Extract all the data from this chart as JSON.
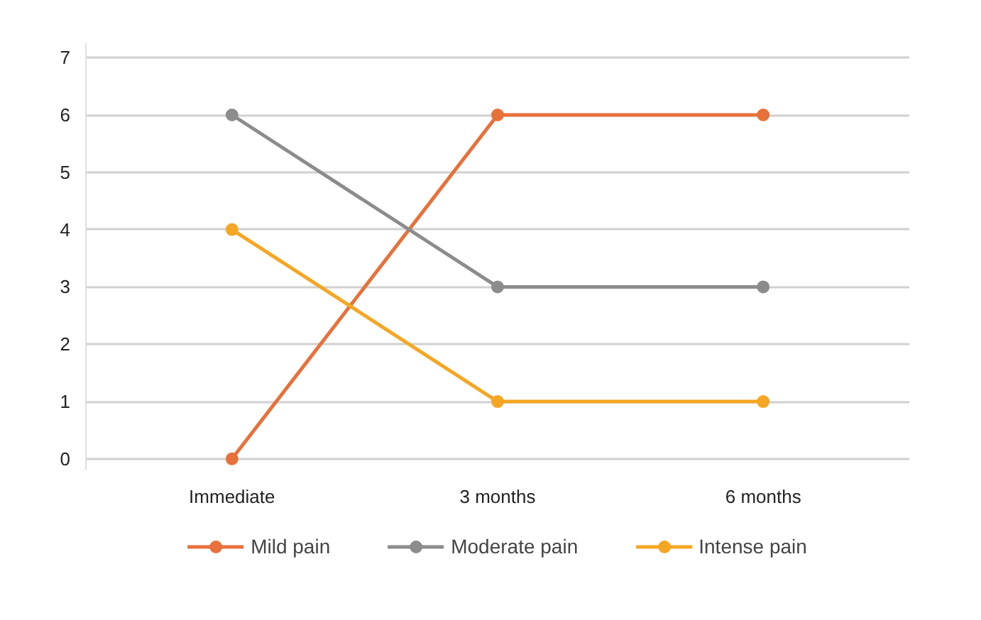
{
  "chart_data": {
    "type": "line",
    "categories": [
      "Immediate",
      "3 months",
      "6 months"
    ],
    "series": [
      {
        "name": "Mild pain",
        "color": "#e8703a",
        "values": [
          0,
          6,
          6
        ]
      },
      {
        "name": "Moderate pain",
        "color": "#8c8c8c",
        "values": [
          6,
          3,
          3
        ]
      },
      {
        "name": "Intense pain",
        "color": "#f5a623",
        "values": [
          4,
          1,
          1
        ]
      }
    ],
    "ylim": [
      -0.2,
      7.25
    ],
    "yticks": [
      0,
      1,
      2,
      3,
      4,
      5,
      6,
      7
    ],
    "grid": "y",
    "legend": "bottom",
    "marker": "circle",
    "line_style": "solid"
  }
}
